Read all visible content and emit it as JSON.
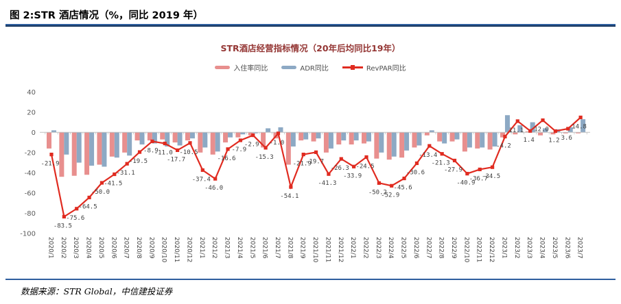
{
  "figure": {
    "header_title": "图 2:STR 酒店情况（%，同比 2019 年）",
    "source_note": "数据来源：STR Global，中信建投证券"
  },
  "chart_data": {
    "type": "bar",
    "subtype": "grouped-bars-with-line",
    "title": "STR酒店经营指标情况（20年后均同比19年）",
    "legend_position": "top",
    "grid": false,
    "ylim": [
      -100,
      40
    ],
    "yticks": [
      40,
      20,
      0,
      -20,
      -40,
      -60,
      -80,
      -100
    ],
    "categories": [
      "2020/1",
      "2020/2",
      "2020/3",
      "2020/4",
      "2020/5",
      "2020/6",
      "2020/7",
      "2020/8",
      "2020/9",
      "2020/10",
      "2020/11",
      "2020/12",
      "2021/1",
      "2021/2",
      "2021/3",
      "2021/4",
      "2021/5",
      "2021/6",
      "2021/7",
      "2021/8",
      "2021/9",
      "2021/10",
      "2021/11",
      "2021/12",
      "2022/1",
      "2022/2",
      "2022/3",
      "2022/4",
      "2022/5",
      "2022/6",
      "2022/7",
      "2022/8",
      "2022/9",
      "2022/10",
      "2022/11",
      "2022/12",
      "2023/1",
      "2023/2",
      "2023/3",
      "2023/4",
      "2023/5",
      "2023/6",
      "2023/7"
    ],
    "series": [
      {
        "name": "入住率同比",
        "type": "bar",
        "color": "#E88F8E",
        "values": [
          -16,
          -44,
          -43,
          -42,
          -32,
          -24,
          -20,
          -8,
          -8,
          -7,
          -10,
          -8,
          -20,
          -22,
          -10,
          -5,
          -3,
          -15,
          -6,
          -32,
          -8,
          -9,
          -20,
          -12,
          -12,
          -11,
          -26,
          -27,
          -25,
          -15,
          -3,
          -9,
          -9,
          -19,
          -16,
          -17,
          -5,
          -2,
          1,
          -3,
          -2,
          -1,
          -1
        ]
      },
      {
        "name": "ADR同比",
        "type": "bar",
        "color": "#8DA9C4",
        "values": [
          2,
          -22,
          -30,
          -33,
          -34,
          -25,
          -23,
          -12,
          -11,
          -14,
          -13,
          -6,
          -15,
          -19,
          -5,
          -2,
          -1,
          4,
          5,
          -14,
          -7,
          -6,
          -16,
          -8,
          -8,
          -9,
          -20,
          -24,
          -18,
          -13,
          2,
          -11,
          -7,
          -15,
          -15,
          -14,
          17,
          7,
          10,
          4,
          3,
          5,
          13
        ]
      },
      {
        "name": "RevPAR同比",
        "type": "line",
        "color": "#E02B20",
        "data_labels": true,
        "values": [
          -21.9,
          -83.5,
          -75.6,
          -64.5,
          -50.0,
          -41.5,
          -31.1,
          -19.5,
          -8.9,
          -11.0,
          -17.7,
          -10.5,
          -37.4,
          -46.0,
          -16.6,
          -7.9,
          -2.9,
          -15.3,
          -1.0,
          -54.1,
          -21.9,
          -19.7,
          -41.3,
          -26.3,
          -33.9,
          -24.5,
          -50.2,
          -52.9,
          -45.6,
          -30.6,
          -13.4,
          -21.3,
          -27.9,
          -40.9,
          -36.7,
          -34.5,
          -4.2,
          11.1,
          1.4,
          12.0,
          1.2,
          3.6,
          14.8
        ]
      }
    ]
  }
}
